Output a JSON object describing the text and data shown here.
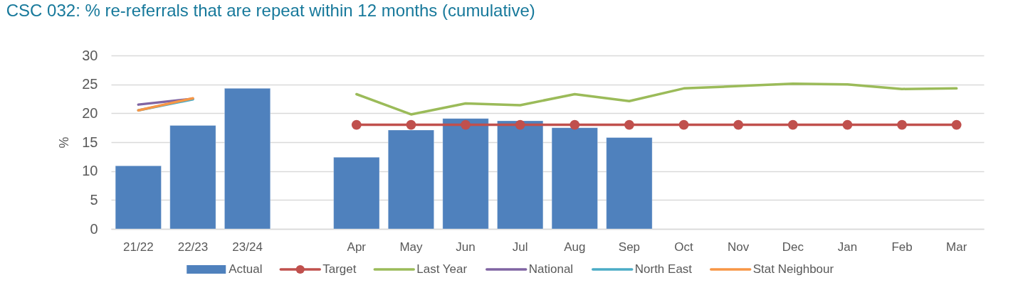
{
  "chart_data": {
    "type": "bar",
    "title": "CSC 032: % re-referrals that are repeat within 12 months (cumulative)",
    "ylabel": "%",
    "categories": [
      "21/22",
      "22/23",
      "23/24",
      null,
      "Apr",
      "May",
      "Jun",
      "Jul",
      "Aug",
      "Sep",
      "Oct",
      "Nov",
      "Dec",
      "Jan",
      "Feb",
      "Mar"
    ],
    "series": [
      {
        "name": "Actual",
        "color": "#4f81bd",
        "values": [
          10.9,
          17.9,
          24.3,
          null,
          12.4,
          17.1,
          19.1,
          18.7,
          17.5,
          15.8,
          null,
          null,
          null,
          null,
          null,
          null
        ]
      },
      {
        "name": "Target",
        "type": "line",
        "marker": "circle",
        "color": "#c0504d",
        "values": [
          null,
          null,
          null,
          null,
          18.0,
          18.0,
          18.0,
          18.0,
          18.0,
          18.0,
          18.0,
          18.0,
          18.0,
          18.0,
          18.0,
          18.0
        ]
      },
      {
        "name": "Last Year",
        "type": "line",
        "color": "#9bbb59",
        "values": [
          null,
          null,
          null,
          null,
          23.3,
          19.8,
          21.7,
          21.4,
          23.3,
          22.1,
          24.3,
          24.7,
          25.1,
          25.0,
          24.2,
          24.3
        ]
      },
      {
        "name": "National",
        "type": "line",
        "color": "#8064a2",
        "values": [
          21.5,
          22.5,
          null,
          null,
          null,
          null,
          null,
          null,
          null,
          null,
          null,
          null,
          null,
          null,
          null,
          null
        ]
      },
      {
        "name": "North East",
        "type": "line",
        "color": "#4bacc6",
        "values": [
          20.5,
          22.4,
          null,
          null,
          null,
          null,
          null,
          null,
          null,
          null,
          null,
          null,
          null,
          null,
          null,
          null
        ]
      },
      {
        "name": "Stat Neighbour",
        "type": "line",
        "color": "#f79646",
        "values": [
          20.5,
          22.6,
          null,
          null,
          null,
          null,
          null,
          null,
          null,
          null,
          null,
          null,
          null,
          null,
          null,
          null
        ]
      }
    ],
    "ylim": [
      0,
      30
    ],
    "yticks": [
      0,
      5,
      10,
      15,
      20,
      25,
      30
    ],
    "grid": "y",
    "legend": "bottom"
  }
}
